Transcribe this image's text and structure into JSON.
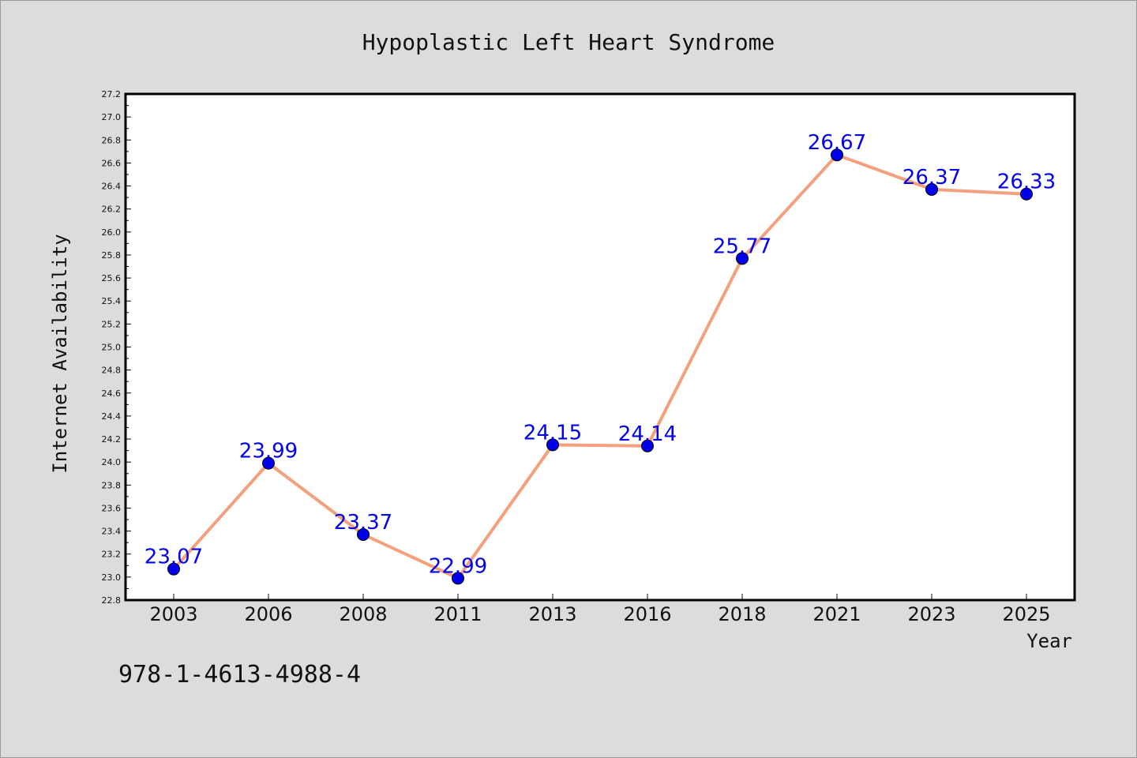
{
  "chart_data": {
    "type": "line",
    "title": "Hypoplastic Left Heart Syndrome",
    "xlabel": "Year",
    "ylabel": "Internet Availability",
    "categories": [
      "2003",
      "2006",
      "2008",
      "2011",
      "2013",
      "2016",
      "2018",
      "2021",
      "2023",
      "2025"
    ],
    "series": [
      {
        "values": [
          23.07,
          23.99,
          23.37,
          22.99,
          24.15,
          24.14,
          25.77,
          26.67,
          26.37,
          26.33
        ],
        "data_labels": [
          "23.07",
          "23.99",
          "23.37",
          "22.99",
          "24.15",
          "24.14",
          "25.77",
          "26.67",
          "26.37",
          "26.33"
        ],
        "line_color": "#f4a07c",
        "marker_color": "#0000ee"
      }
    ],
    "ylim": [
      22.8,
      27.2
    ],
    "yticks": [
      "22.8",
      "23.0",
      "23.2",
      "23.4",
      "23.6",
      "23.8",
      "24.0",
      "24.2",
      "24.4",
      "24.6",
      "24.8",
      "25.0",
      "25.2",
      "25.4",
      "25.6",
      "25.8",
      "26.0",
      "26.2",
      "26.4",
      "26.6",
      "26.8",
      "27.0",
      "27.2"
    ],
    "grid": false,
    "legend": "none"
  },
  "footer": {
    "isbn": "978-1-4613-4988-4"
  },
  "colors": {
    "background": "#dcdcdc",
    "plot_background": "#ffffff",
    "axis": "#000000"
  }
}
